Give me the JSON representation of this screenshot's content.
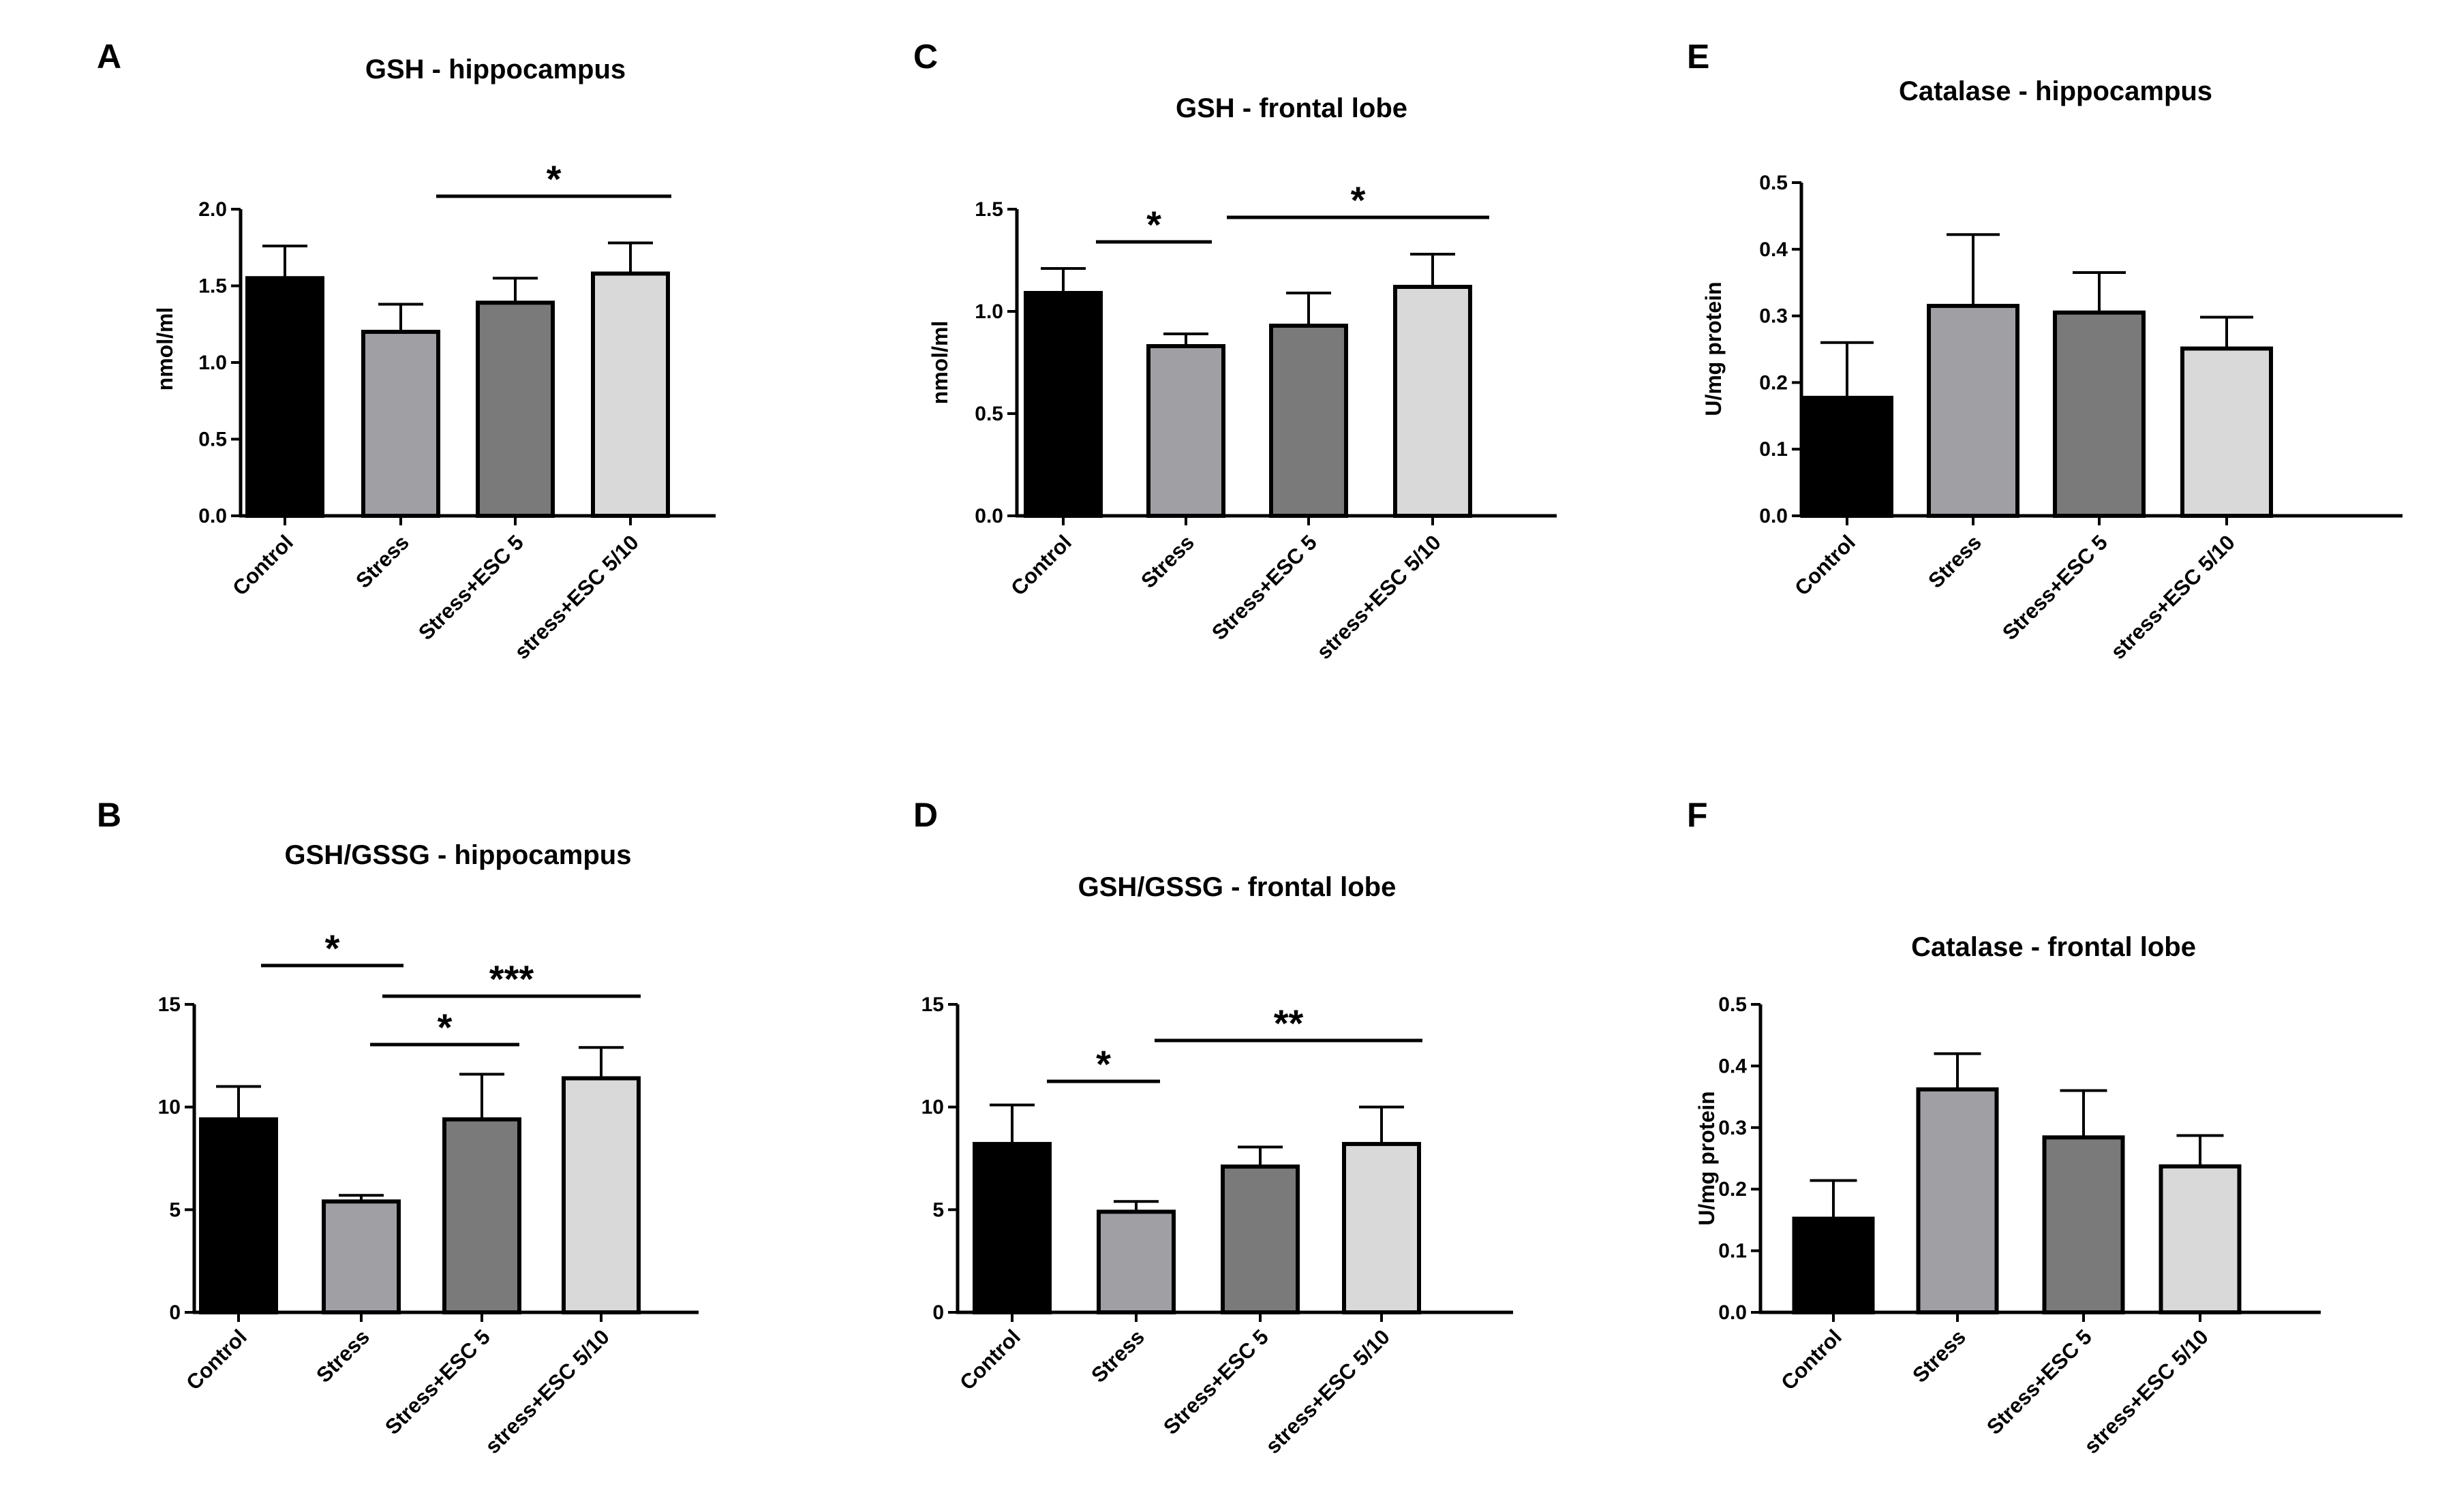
{
  "figure": {
    "colors": {
      "series": [
        "#000000",
        "#a09fa4",
        "#7a7a7a",
        "#d9d9d9"
      ],
      "stroke": "#000000"
    }
  },
  "chart_data": [
    {
      "id": "A",
      "letter": "A",
      "type": "bar",
      "title": "GSH - hippocampus",
      "xlabel": "",
      "ylabel": "nmol/ml",
      "categories": [
        "Control",
        "Stress",
        "Stress+ESC 5",
        "stress+ESC 5/10"
      ],
      "values": [
        1.55,
        1.2,
        1.39,
        1.58
      ],
      "errors": [
        0.21,
        0.18,
        0.16,
        0.2
      ],
      "ylim": [
        0,
        2.0
      ],
      "yticks": [
        "0.0",
        "0.5",
        "1.0",
        "1.5",
        "2.0"
      ],
      "significance": [
        {
          "from": 1,
          "to": 3,
          "label": "*"
        }
      ]
    },
    {
      "id": "B",
      "letter": "B",
      "type": "bar",
      "title": "GSH/GSSG - hippocampus",
      "xlabel": "",
      "ylabel": "",
      "categories": [
        "Control",
        "Stress",
        "Stress+ESC 5",
        "stress+ESC 5/10"
      ],
      "values": [
        9.4,
        5.4,
        9.4,
        11.4
      ],
      "errors": [
        1.6,
        0.3,
        2.2,
        1.5
      ],
      "ylim": [
        0,
        15
      ],
      "yticks": [
        "0",
        "5",
        "10",
        "15"
      ],
      "significance": [
        {
          "from": 0,
          "to": 1,
          "label": "*"
        },
        {
          "from": 1,
          "to": 3,
          "label": "***"
        },
        {
          "from": 1,
          "to": 2,
          "label": "*"
        }
      ]
    },
    {
      "id": "C",
      "letter": "C",
      "type": "bar",
      "title": "GSH - frontal lobe",
      "xlabel": "",
      "ylabel": "nmol/ml",
      "categories": [
        "Control",
        "Stress",
        "Stress+ESC 5",
        "stress+ESC 5/10"
      ],
      "values": [
        1.09,
        0.83,
        0.93,
        1.12
      ],
      "errors": [
        0.12,
        0.06,
        0.16,
        0.16
      ],
      "ylim": [
        0,
        1.5
      ],
      "yticks": [
        "0.0",
        "0.5",
        "1.0",
        "1.5"
      ],
      "significance": [
        {
          "from": 0,
          "to": 1,
          "label": "*"
        },
        {
          "from": 1,
          "to": 3,
          "label": "*"
        }
      ]
    },
    {
      "id": "D",
      "letter": "D",
      "type": "bar",
      "title": "GSH/GSSG - frontal lobe",
      "xlabel": "",
      "ylabel": "",
      "categories": [
        "Control",
        "Stress",
        "Stress+ESC 5",
        "stress+ESC 5/10"
      ],
      "values": [
        8.2,
        4.9,
        7.1,
        8.2
      ],
      "errors": [
        1.9,
        0.5,
        0.95,
        1.8
      ],
      "ylim": [
        0,
        15
      ],
      "yticks": [
        "0",
        "5",
        "10",
        "15"
      ],
      "significance": [
        {
          "from": 0,
          "to": 1,
          "label": "*"
        },
        {
          "from": 1,
          "to": 3,
          "label": "**"
        }
      ]
    },
    {
      "id": "E",
      "letter": "E",
      "type": "bar",
      "title": "Catalase - hippocampus",
      "xlabel": "",
      "ylabel": "U/mg protein",
      "categories": [
        "Control",
        "Stress",
        "Stress+ESC 5",
        "stress+ESC 5/10"
      ],
      "values": [
        0.177,
        0.315,
        0.305,
        0.251
      ],
      "errors": [
        0.083,
        0.107,
        0.06,
        0.047
      ],
      "ylim": [
        0,
        0.5
      ],
      "yticks": [
        "0.0",
        "0.1",
        "0.2",
        "0.3",
        "0.4",
        "0.5"
      ],
      "significance": []
    },
    {
      "id": "F",
      "letter": "F",
      "type": "bar",
      "title": "Catalase - frontal lobe",
      "xlabel": "",
      "ylabel": "U/mg protein",
      "categories": [
        "Control",
        "Stress",
        "Stress+ESC 5",
        "stress+ESC 5/10"
      ],
      "values": [
        0.152,
        0.362,
        0.284,
        0.237
      ],
      "errors": [
        0.062,
        0.058,
        0.076,
        0.05
      ],
      "ylim": [
        0,
        0.5
      ],
      "yticks": [
        "0.0",
        "0.1",
        "0.2",
        "0.3",
        "0.4",
        "0.5"
      ],
      "significance": []
    }
  ]
}
